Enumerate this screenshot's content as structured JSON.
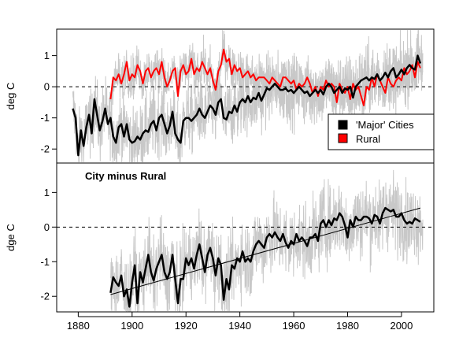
{
  "colors": {
    "city": "#000000",
    "rural": "#ff0000",
    "monthly_noise": "#c8c8c8",
    "frame": "#000000"
  },
  "chart_data": [
    {
      "type": "line",
      "panel": "top",
      "ylabel": "deg C",
      "xlim": [
        1872,
        2012
      ],
      "ylim": [
        -2.45,
        1.85
      ],
      "yticks": [
        -2,
        -1,
        0,
        1
      ],
      "reference_line": {
        "y": 0,
        "style": "dashed"
      },
      "monthly_noise": true,
      "legend": {
        "placement": "lower-right",
        "entries": [
          {
            "label": "'Major' Cities",
            "color": "#000000"
          },
          {
            "label": "Rural",
            "color": "#ff0000"
          }
        ]
      },
      "series": [
        {
          "name": "'Major' Cities",
          "color": "#000000",
          "x": [
            1878,
            1879,
            1880,
            1881,
            1882,
            1883,
            1884,
            1885,
            1886,
            1887,
            1888,
            1889,
            1890,
            1891,
            1892,
            1893,
            1894,
            1895,
            1896,
            1897,
            1898,
            1899,
            1900,
            1901,
            1902,
            1903,
            1904,
            1905,
            1906,
            1907,
            1908,
            1909,
            1910,
            1911,
            1912,
            1913,
            1914,
            1915,
            1916,
            1917,
            1918,
            1919,
            1920,
            1921,
            1922,
            1923,
            1924,
            1925,
            1926,
            1927,
            1928,
            1929,
            1930,
            1931,
            1932,
            1933,
            1934,
            1935,
            1936,
            1937,
            1938,
            1939,
            1940,
            1941,
            1942,
            1943,
            1944,
            1945,
            1946,
            1947,
            1948,
            1949,
            1950,
            1951,
            1952,
            1953,
            1954,
            1955,
            1956,
            1957,
            1958,
            1959,
            1960,
            1961,
            1962,
            1963,
            1964,
            1965,
            1966,
            1967,
            1968,
            1969,
            1970,
            1971,
            1972,
            1973,
            1974,
            1975,
            1976,
            1977,
            1978,
            1979,
            1980,
            1981,
            1982,
            1983,
            1984,
            1985,
            1986,
            1987,
            1988,
            1989,
            1990,
            1991,
            1992,
            1993,
            1994,
            1995,
            1996,
            1997,
            1998,
            1999,
            2000,
            2001,
            2002,
            2003,
            2004,
            2005,
            2006,
            2007
          ],
          "values": [
            -0.7,
            -1.0,
            -2.2,
            -1.4,
            -1.9,
            -1.3,
            -0.9,
            -1.5,
            -0.4,
            -0.9,
            -1.4,
            -1.1,
            -0.7,
            -1.2,
            -1.0,
            -1.6,
            -1.8,
            -1.3,
            -1.2,
            -1.6,
            -1.2,
            -1.7,
            -1.8,
            -1.75,
            -1.6,
            -1.7,
            -1.5,
            -1.4,
            -1.45,
            -1.2,
            -1.1,
            -1.4,
            -1.0,
            -0.9,
            -1.2,
            -1.5,
            -1.25,
            -0.8,
            -1.5,
            -1.7,
            -1.8,
            -1.1,
            -1.0,
            -1.0,
            -1.1,
            -1.0,
            -0.9,
            -0.7,
            -0.9,
            -1.0,
            -0.8,
            -0.6,
            -0.7,
            -0.9,
            -0.5,
            -0.4,
            -1.0,
            -1.05,
            -0.8,
            -0.85,
            -0.6,
            -0.8,
            -0.5,
            -0.4,
            -0.5,
            -0.3,
            -0.5,
            -0.35,
            -0.4,
            -0.2,
            -0.45,
            -0.25,
            -0.05,
            -0.1,
            0.0,
            0.1,
            0.0,
            -0.1,
            -0.1,
            -0.05,
            -0.15,
            -0.1,
            -0.2,
            -0.1,
            0.0,
            -0.1,
            -0.2,
            -0.15,
            -0.3,
            -0.2,
            -0.1,
            -0.2,
            -0.1,
            -0.25,
            0.0,
            0.1,
            0.0,
            -0.2,
            -0.1,
            0.0,
            -0.2,
            -0.05,
            -0.1,
            0.0,
            -0.35,
            0.0,
            0.1,
            0.2,
            0.25,
            0.3,
            0.2,
            0.3,
            0.25,
            0.4,
            0.2,
            0.3,
            0.45,
            0.3,
            0.5,
            0.6,
            0.3,
            0.4,
            0.55,
            0.4,
            0.6,
            0.7,
            0.6,
            0.55,
            1.0,
            0.75
          ]
        },
        {
          "name": "Rural",
          "color": "#ff0000",
          "x": [
            1892,
            1893,
            1894,
            1895,
            1896,
            1897,
            1898,
            1899,
            1900,
            1901,
            1902,
            1903,
            1904,
            1905,
            1906,
            1907,
            1908,
            1909,
            1910,
            1911,
            1912,
            1913,
            1914,
            1915,
            1916,
            1917,
            1918,
            1919,
            1920,
            1921,
            1922,
            1923,
            1924,
            1925,
            1926,
            1927,
            1928,
            1929,
            1930,
            1931,
            1932,
            1933,
            1934,
            1935,
            1936,
            1937,
            1938,
            1939,
            1940,
            1941,
            1942,
            1943,
            1944,
            1945,
            1946,
            1947,
            1948,
            1949,
            1950,
            1951,
            1952,
            1953,
            1954,
            1955,
            1956,
            1957,
            1958,
            1959,
            1960,
            1961,
            1962,
            1963,
            1964,
            1965,
            1966,
            1967,
            1968,
            1969,
            1970,
            1971,
            1972,
            1973,
            1974,
            1975,
            1976,
            1977,
            1978,
            1979,
            1980,
            1981,
            1982,
            1983,
            1984,
            1985,
            1986,
            1987,
            1988,
            1989,
            1990,
            1991,
            1992,
            1993,
            1994,
            1995,
            1996,
            1997,
            1998,
            1999,
            2000,
            2001,
            2002,
            2003,
            2004,
            2005,
            2006,
            2007
          ],
          "values": [
            -0.4,
            0.3,
            0.2,
            0.4,
            0.1,
            0.4,
            0.8,
            0.2,
            0.4,
            0.3,
            0.7,
            0.5,
            0.1,
            0.5,
            0.6,
            0.3,
            0.5,
            0.6,
            0.4,
            0.8,
            0.3,
            0.0,
            0.2,
            0.5,
            0.6,
            -0.3,
            0.5,
            0.7,
            0.4,
            0.5,
            0.9,
            0.4,
            0.6,
            0.5,
            0.8,
            0.6,
            0.4,
            0.6,
            0.2,
            -0.1,
            0.5,
            0.7,
            1.2,
            0.8,
            0.9,
            0.4,
            0.7,
            0.5,
            0.6,
            0.3,
            0.4,
            0.5,
            0.3,
            0.4,
            0.2,
            0.3,
            0.3,
            0.3,
            0.2,
            0.1,
            0.3,
            0.2,
            0.1,
            0.0,
            0.3,
            0.3,
            0.2,
            0.1,
            0.2,
            -0.1,
            0.1,
            0.0,
            0.1,
            0.3,
            0.1,
            -0.2,
            0.0,
            -0.3,
            0.0,
            -0.1,
            0.2,
            0.0,
            0.1,
            0.0,
            -0.5,
            0.1,
            -0.1,
            -0.2,
            0.0,
            -0.4,
            0.1,
            -0.1,
            0.0,
            -0.3,
            -0.6,
            0.0,
            -0.1,
            0.3,
            0.0,
            0.4,
            0.2,
            0.0,
            -0.2,
            0.3,
            0.1,
            0.0,
            0.2,
            0.3,
            0.2,
            0.6,
            0.4,
            0.5,
            0.7,
            0.3,
            0.8,
            0.6
          ]
        }
      ]
    },
    {
      "type": "line",
      "panel": "bottom",
      "title": "City minus Rural",
      "ylabel": "dge C",
      "xlim": [
        1872,
        2012
      ],
      "ylim": [
        -2.45,
        1.85
      ],
      "xticks": [
        1880,
        1900,
        1920,
        1940,
        1960,
        1980,
        2000
      ],
      "yticks": [
        -2,
        -1,
        0,
        1
      ],
      "reference_line": {
        "y": 0,
        "style": "dashed"
      },
      "monthly_noise": true,
      "trend_line": {
        "x": [
          1892,
          2007
        ],
        "y": [
          -1.95,
          0.55
        ]
      },
      "series": [
        {
          "color": "#000000",
          "x": [
            1892,
            1893,
            1894,
            1895,
            1896,
            1897,
            1898,
            1899,
            1900,
            1901,
            1902,
            1903,
            1904,
            1905,
            1906,
            1907,
            1908,
            1909,
            1910,
            1911,
            1912,
            1913,
            1914,
            1915,
            1916,
            1917,
            1918,
            1919,
            1920,
            1921,
            1922,
            1923,
            1924,
            1925,
            1926,
            1927,
            1928,
            1929,
            1930,
            1931,
            1932,
            1933,
            1934,
            1935,
            1936,
            1937,
            1938,
            1939,
            1940,
            1941,
            1942,
            1943,
            1944,
            1945,
            1946,
            1947,
            1948,
            1949,
            1950,
            1951,
            1952,
            1953,
            1954,
            1955,
            1956,
            1957,
            1958,
            1959,
            1960,
            1961,
            1962,
            1963,
            1964,
            1965,
            1966,
            1967,
            1968,
            1969,
            1970,
            1971,
            1972,
            1973,
            1974,
            1975,
            1976,
            1977,
            1978,
            1979,
            1980,
            1981,
            1982,
            1983,
            1984,
            1985,
            1986,
            1987,
            1988,
            1989,
            1990,
            1991,
            1992,
            1993,
            1994,
            1995,
            1996,
            1997,
            1998,
            1999,
            2000,
            2001,
            2002,
            2003,
            2004,
            2005,
            2006,
            2007
          ],
          "values": [
            -1.9,
            -1.45,
            -1.6,
            -1.7,
            -1.4,
            -2.0,
            -1.8,
            -2.3,
            -1.6,
            -1.1,
            -2.2,
            -1.3,
            -1.6,
            -1.2,
            -0.8,
            -1.3,
            -1.55,
            -1.2,
            -1.0,
            -0.8,
            -1.3,
            -1.5,
            -1.3,
            -0.8,
            -1.5,
            -2.2,
            -1.5,
            -1.5,
            -0.9,
            -1.1,
            -0.9,
            -1.2,
            -0.8,
            -0.5,
            -0.9,
            -1.3,
            -0.8,
            -0.6,
            -0.9,
            -1.4,
            -0.9,
            -1.1,
            -2.1,
            -1.5,
            -1.8,
            -1.1,
            -1.2,
            -0.9,
            -1.0,
            -0.7,
            -1.0,
            -0.9,
            -1.0,
            -0.7,
            -0.5,
            -0.4,
            -0.5,
            -0.6,
            -0.3,
            -0.2,
            -0.3,
            -0.15,
            -0.3,
            -0.4,
            -0.2,
            -0.45,
            -0.6,
            -0.4,
            -0.5,
            -0.2,
            -0.4,
            -0.3,
            -0.4,
            -0.55,
            -0.3,
            -0.3,
            -0.2,
            -0.4,
            0.1,
            0.2,
            0.0,
            0.2,
            0.05,
            0.25,
            0.2,
            0.4,
            0.3,
            0.05,
            -0.3,
            0.2,
            0.0,
            0.3,
            0.2,
            0.2,
            0.3,
            0.3,
            0.25,
            0.1,
            0.35,
            0.3,
            0.1,
            0.4,
            0.55,
            0.5,
            0.45,
            0.5,
            0.3,
            0.3,
            0.4,
            0.2,
            0.1,
            0.15,
            0.1,
            0.25,
            0.2,
            0.15
          ]
        }
      ]
    }
  ]
}
